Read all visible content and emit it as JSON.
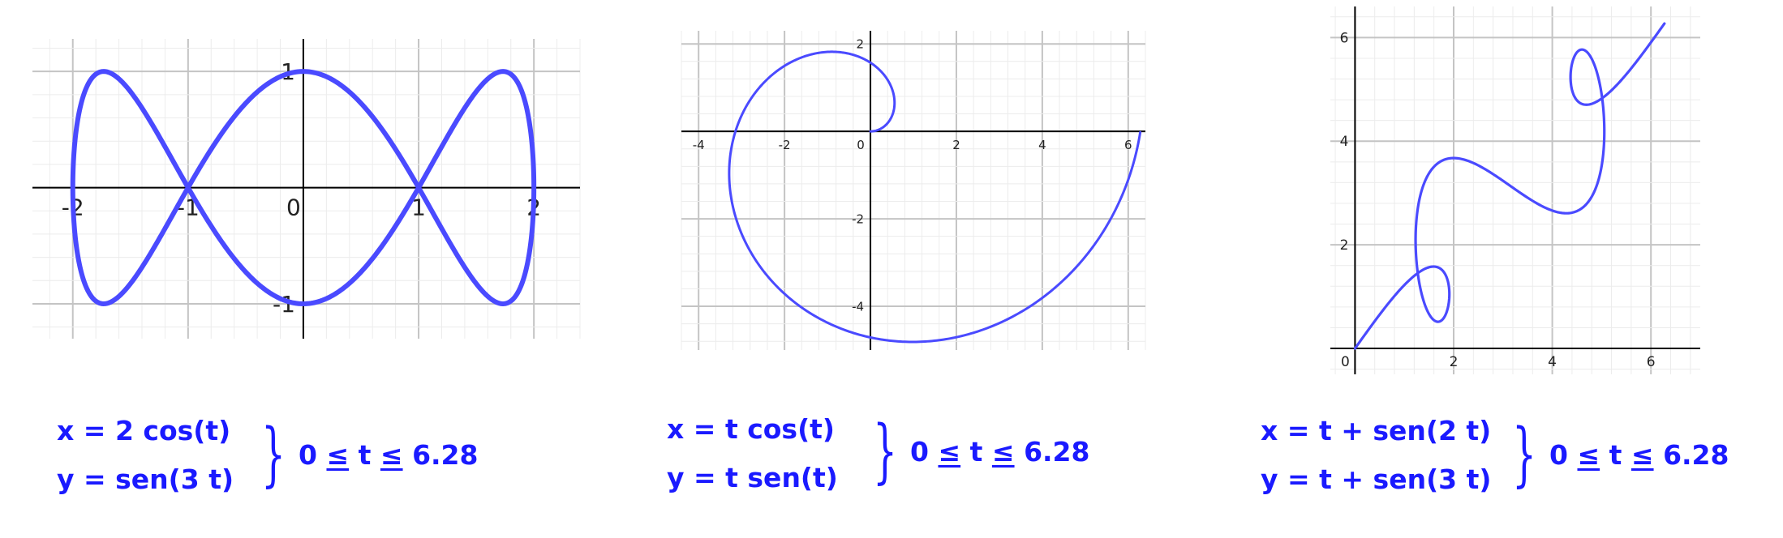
{
  "chart_data": [
    {
      "type": "line",
      "title": "",
      "param": {
        "x": "2cos(t)",
        "y": "sin(3t)",
        "t_range": [
          0,
          6.28
        ]
      },
      "xlim": [
        -2.35,
        2.4
      ],
      "ylim": [
        -1.3,
        1.28
      ],
      "x_ticks": [
        "-2",
        "-1",
        "0",
        "1",
        "2"
      ],
      "y_ticks": [
        "1",
        "-1"
      ],
      "grid": true,
      "line_color": "#4a4aff",
      "equation": {
        "x_var": "x",
        "x_expr": "2  cos(t)",
        "y_var": "y",
        "y_expr": "sen(3 t)",
        "t_min": "0",
        "t_max": "6.28",
        "le": "≤",
        "t": "t"
      }
    },
    {
      "type": "line",
      "title": "",
      "param": {
        "x": "t·cos(t)",
        "y": "t·sin(t)",
        "t_range": [
          0,
          6.28
        ]
      },
      "xlim": [
        -4.4,
        6.4
      ],
      "ylim": [
        -5.0,
        2.3
      ],
      "x_ticks": [
        "-4",
        "-2",
        "0",
        "2",
        "4",
        "6"
      ],
      "y_ticks": [
        "2",
        "-2",
        "-4"
      ],
      "grid": true,
      "line_color": "#4a4aff",
      "equation": {
        "x_var": "x",
        "x_expr": "t  cos(t)",
        "y_var": "y",
        "y_expr": "t  sen(t)",
        "t_min": "0",
        "t_max": "6.28",
        "le": "≤",
        "t": "t"
      }
    },
    {
      "type": "line",
      "title": "",
      "param": {
        "x": "t + sin(2t)",
        "y": "t + sin(3t)",
        "t_range": [
          0,
          6.28
        ]
      },
      "xlim": [
        -0.5,
        7.0
      ],
      "ylim": [
        -0.5,
        6.6
      ],
      "x_ticks": [
        "0",
        "2",
        "4",
        "6"
      ],
      "y_ticks": [
        "6",
        "4",
        "2"
      ],
      "grid": true,
      "line_color": "#4a4aff",
      "equation": {
        "x_var": "x",
        "x_expr": "t + sen(2 t)",
        "y_var": "y",
        "y_expr": "t + sen(3 t)",
        "t_min": "0",
        "t_max": "6.28",
        "le": "≤",
        "t": "t"
      }
    }
  ]
}
